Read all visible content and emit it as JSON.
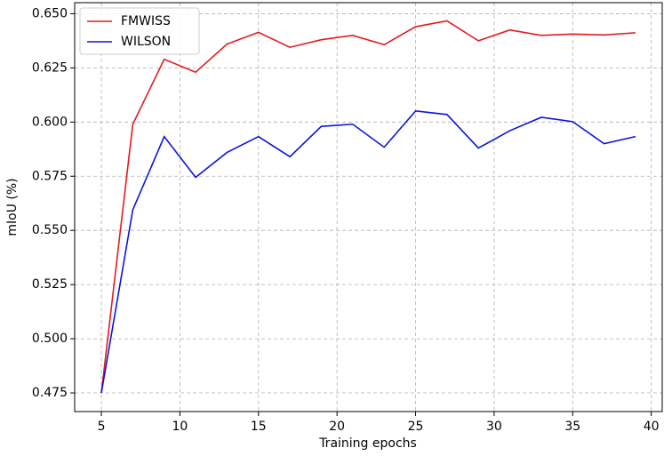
{
  "chart_data": {
    "type": "line",
    "xlabel": "Training epochs",
    "ylabel": "mIoU (%)",
    "x": [
      5,
      7,
      9,
      11,
      13,
      15,
      17,
      19,
      21,
      23,
      25,
      27,
      29,
      31,
      33,
      35,
      37,
      39
    ],
    "series": [
      {
        "name": "FMWISS",
        "color": "#e31a1c",
        "values": [
          0.475,
          0.599,
          0.629,
          0.623,
          0.636,
          0.6414,
          0.6345,
          0.638,
          0.64,
          0.6357,
          0.644,
          0.6467,
          0.6375,
          0.6425,
          0.64,
          0.6406,
          0.6402,
          0.6412
        ]
      },
      {
        "name": "WILSON",
        "color": "#0a14e0",
        "values": [
          0.475,
          0.5595,
          0.5933,
          0.5745,
          0.586,
          0.5933,
          0.584,
          0.598,
          0.599,
          0.5884,
          0.6051,
          0.6035,
          0.588,
          0.596,
          0.6022,
          0.6002,
          0.59,
          0.5933
        ]
      }
    ],
    "xlim": [
      3.3,
      40.7
    ],
    "xticks": [
      5,
      10,
      15,
      20,
      25,
      30,
      35,
      40
    ],
    "ylim": [
      0.4664,
      0.6551
    ],
    "yticks": [
      0.475,
      {
        "value": 0.5,
        "label": "0.500"
      },
      0.525,
      {
        "value": 0.55,
        "label": "0.550"
      },
      0.575,
      {
        "value": 0.6,
        "label": "0.600"
      },
      0.625,
      {
        "value": 0.65,
        "label": "0.650"
      }
    ],
    "grid": true,
    "legend": "upper left"
  }
}
